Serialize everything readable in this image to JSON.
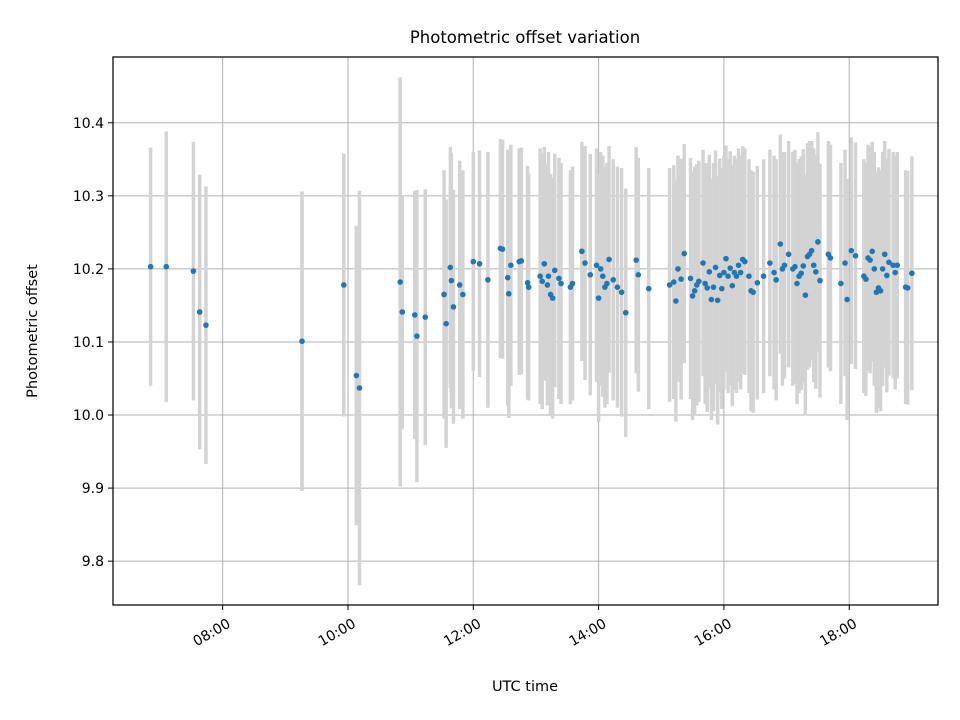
{
  "chart_data": {
    "type": "scatter",
    "title": "Photometric offset variation",
    "xlabel": "UTC time",
    "ylabel": "Photometric offset",
    "x_unit": "time of day (HH:MM, UTC)",
    "xlim": [
      "06:15",
      "19:25"
    ],
    "ylim": [
      9.74,
      10.49
    ],
    "x_ticks": [
      "08:00",
      "10:00",
      "12:00",
      "14:00",
      "16:00",
      "18:00"
    ],
    "y_ticks": [
      "9.8",
      "9.9",
      "10.0",
      "10.1",
      "10.2",
      "10.3",
      "10.4"
    ],
    "grid": true,
    "legend": "none",
    "colors": {
      "points": "#1f77b4",
      "errorbars": "#d3d3d3",
      "grid": "#b0b0b0"
    },
    "series": [
      {
        "fields": [
          "time",
          "value",
          "error"
        ],
        "points": [
          [
            "06:51",
            10.203,
            0.163
          ],
          [
            "07:06",
            10.203,
            0.185
          ],
          [
            "07:32",
            10.197,
            0.177
          ],
          [
            "07:38",
            10.141,
            0.188
          ],
          [
            "07:44",
            10.123,
            0.19
          ],
          [
            "09:16",
            10.101,
            0.205
          ],
          [
            "09:56",
            10.178,
            0.18
          ],
          [
            "10:08",
            10.054,
            0.205
          ],
          [
            "10:11",
            10.037,
            0.27
          ],
          [
            "10:50",
            10.182,
            0.28
          ],
          [
            "10:52",
            10.141,
            0.16
          ],
          [
            "11:04",
            10.137,
            0.17
          ],
          [
            "11:06",
            10.108,
            0.2
          ],
          [
            "11:14",
            10.134,
            0.175
          ],
          [
            "11:32",
            10.165,
            0.17
          ],
          [
            "11:34",
            10.125,
            0.17
          ],
          [
            "11:38",
            10.202,
            0.165
          ],
          [
            "11:39",
            10.184,
            0.175
          ],
          [
            "11:41",
            10.148,
            0.16
          ],
          [
            "11:47",
            10.178,
            0.17
          ],
          [
            "11:50",
            10.165,
            0.17
          ],
          [
            "12:00",
            10.21,
            0.15
          ],
          [
            "12:06",
            10.207,
            0.155
          ],
          [
            "12:14",
            10.185,
            0.175
          ],
          [
            "12:26",
            10.228,
            0.15
          ],
          [
            "12:28",
            10.227,
            0.15
          ],
          [
            "12:33",
            10.188,
            0.175
          ],
          [
            "12:34",
            10.166,
            0.17
          ],
          [
            "12:36",
            10.205,
            0.165
          ],
          [
            "12:44",
            10.21,
            0.155
          ],
          [
            "12:46",
            10.211,
            0.155
          ],
          [
            "12:52",
            10.181,
            0.16
          ],
          [
            "12:53",
            10.175,
            0.155
          ],
          [
            "13:04",
            10.19,
            0.175
          ],
          [
            "13:06",
            10.183,
            0.175
          ],
          [
            "13:08",
            10.207,
            0.16
          ],
          [
            "13:11",
            10.178,
            0.165
          ],
          [
            "13:12",
            10.19,
            0.17
          ],
          [
            "13:14",
            10.165,
            0.165
          ],
          [
            "13:16",
            10.16,
            0.165
          ],
          [
            "13:18",
            10.198,
            0.16
          ],
          [
            "13:22",
            10.187,
            0.165
          ],
          [
            "13:24",
            10.18,
            0.165
          ],
          [
            "13:33",
            10.175,
            0.16
          ],
          [
            "13:35",
            10.18,
            0.16
          ],
          [
            "13:44",
            10.224,
            0.15
          ],
          [
            "13:47",
            10.208,
            0.16
          ],
          [
            "13:52",
            10.192,
            0.165
          ],
          [
            "13:58",
            10.205,
            0.16
          ],
          [
            "14:00",
            10.16,
            0.17
          ],
          [
            "14:02",
            10.2,
            0.16
          ],
          [
            "14:04",
            10.19,
            0.165
          ],
          [
            "14:06",
            10.175,
            0.165
          ],
          [
            "14:08",
            10.18,
            0.165
          ],
          [
            "14:10",
            10.213,
            0.155
          ],
          [
            "14:14",
            10.185,
            0.165
          ],
          [
            "14:18",
            10.175,
            0.165
          ],
          [
            "14:22",
            10.168,
            0.17
          ],
          [
            "14:26",
            10.14,
            0.17
          ],
          [
            "14:36",
            10.212,
            0.155
          ],
          [
            "14:38",
            10.192,
            0.16
          ],
          [
            "14:48",
            10.173,
            0.165
          ],
          [
            "15:08",
            10.178,
            0.16
          ],
          [
            "15:12",
            10.182,
            0.16
          ],
          [
            "15:14",
            10.156,
            0.165
          ],
          [
            "15:16",
            10.2,
            0.155
          ],
          [
            "15:19",
            10.186,
            0.165
          ],
          [
            "15:22",
            10.221,
            0.15
          ],
          [
            "15:28",
            10.187,
            0.165
          ],
          [
            "15:30",
            10.163,
            0.17
          ],
          [
            "15:32",
            10.17,
            0.17
          ],
          [
            "15:34",
            10.178,
            0.165
          ],
          [
            "15:36",
            10.183,
            0.165
          ],
          [
            "15:40",
            10.208,
            0.155
          ],
          [
            "15:42",
            10.18,
            0.165
          ],
          [
            "15:44",
            10.174,
            0.17
          ],
          [
            "15:46",
            10.196,
            0.16
          ],
          [
            "15:48",
            10.158,
            0.165
          ],
          [
            "15:50",
            10.175,
            0.17
          ],
          [
            "15:52",
            10.202,
            0.16
          ],
          [
            "15:54",
            10.157,
            0.17
          ],
          [
            "15:56",
            10.191,
            0.16
          ],
          [
            "15:58",
            10.173,
            0.165
          ],
          [
            "16:00",
            10.195,
            0.16
          ],
          [
            "16:02",
            10.214,
            0.155
          ],
          [
            "16:04",
            10.19,
            0.16
          ],
          [
            "16:06",
            10.201,
            0.16
          ],
          [
            "16:08",
            10.177,
            0.165
          ],
          [
            "16:10",
            10.195,
            0.16
          ],
          [
            "16:12",
            10.19,
            0.16
          ],
          [
            "16:14",
            10.205,
            0.16
          ],
          [
            "16:16",
            10.195,
            0.16
          ],
          [
            "16:18",
            10.213,
            0.155
          ],
          [
            "16:20",
            10.21,
            0.155
          ],
          [
            "16:24",
            10.19,
            0.16
          ],
          [
            "16:26",
            10.17,
            0.165
          ],
          [
            "16:28",
            10.168,
            0.165
          ],
          [
            "16:32",
            10.181,
            0.16
          ],
          [
            "16:38",
            10.19,
            0.16
          ],
          [
            "16:44",
            10.208,
            0.155
          ],
          [
            "16:48",
            10.195,
            0.16
          ],
          [
            "16:50",
            10.185,
            0.165
          ],
          [
            "16:54",
            10.234,
            0.15
          ],
          [
            "16:56",
            10.2,
            0.16
          ],
          [
            "16:58",
            10.205,
            0.155
          ],
          [
            "17:02",
            10.22,
            0.155
          ],
          [
            "17:06",
            10.2,
            0.16
          ],
          [
            "17:08",
            10.203,
            0.16
          ],
          [
            "17:10",
            10.18,
            0.165
          ],
          [
            "17:12",
            10.19,
            0.16
          ],
          [
            "17:14",
            10.194,
            0.16
          ],
          [
            "17:16",
            10.204,
            0.16
          ],
          [
            "17:18",
            10.164,
            0.165
          ],
          [
            "17:20",
            10.217,
            0.155
          ],
          [
            "17:22",
            10.22,
            0.155
          ],
          [
            "17:24",
            10.225,
            0.15
          ],
          [
            "17:26",
            10.205,
            0.16
          ],
          [
            "17:28",
            10.196,
            0.16
          ],
          [
            "17:30",
            10.237,
            0.15
          ],
          [
            "17:32",
            10.184,
            0.16
          ],
          [
            "17:40",
            10.22,
            0.155
          ],
          [
            "17:42",
            10.215,
            0.155
          ],
          [
            "17:52",
            10.18,
            0.165
          ],
          [
            "17:56",
            10.208,
            0.155
          ],
          [
            "17:58",
            10.158,
            0.165
          ],
          [
            "18:02",
            10.225,
            0.155
          ],
          [
            "18:06",
            10.218,
            0.155
          ],
          [
            "18:14",
            10.19,
            0.16
          ],
          [
            "18:16",
            10.186,
            0.16
          ],
          [
            "18:18",
            10.215,
            0.155
          ],
          [
            "18:20",
            10.212,
            0.155
          ],
          [
            "18:22",
            10.224,
            0.15
          ],
          [
            "18:24",
            10.2,
            0.16
          ],
          [
            "18:26",
            10.168,
            0.165
          ],
          [
            "18:28",
            10.174,
            0.165
          ],
          [
            "18:30",
            10.17,
            0.165
          ],
          [
            "18:32",
            10.2,
            0.16
          ],
          [
            "18:34",
            10.22,
            0.155
          ],
          [
            "18:36",
            10.191,
            0.16
          ],
          [
            "18:38",
            10.209,
            0.155
          ],
          [
            "18:42",
            10.205,
            0.155
          ],
          [
            "18:44",
            10.195,
            0.16
          ],
          [
            "18:46",
            10.205,
            0.155
          ],
          [
            "18:54",
            10.175,
            0.16
          ],
          [
            "18:56",
            10.174,
            0.16
          ],
          [
            "19:00",
            10.194,
            0.16
          ]
        ]
      }
    ]
  }
}
